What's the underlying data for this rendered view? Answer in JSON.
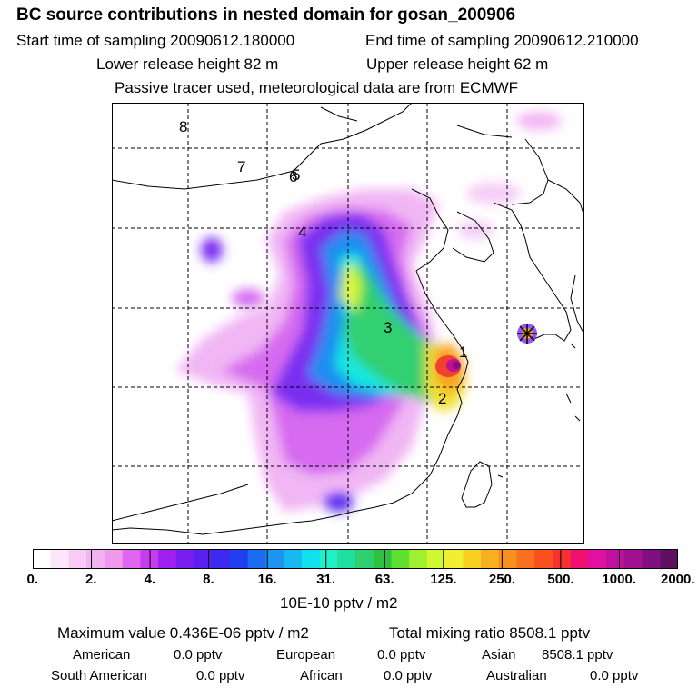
{
  "header": {
    "title": "BC  source contributions in nested domain for gosan_200906",
    "start_label": "Start time of sampling 20090612.180000",
    "end_label": "End time of sampling 20090612.210000",
    "lower_label": "Lower release height   82 m",
    "upper_label": "Upper release height   62 m",
    "note": "Passive tracer used, meteorological data are from ECMWF"
  },
  "map": {
    "region_labels": [
      "1",
      "2",
      "3",
      "4",
      "5",
      "6",
      "7",
      "8"
    ],
    "receptor_icon": "star-marker-icon"
  },
  "colorbar": {
    "ticks": [
      "0.",
      "2.",
      "4.",
      "8.",
      "16.",
      "31.",
      "63.",
      "125.",
      "250.",
      "500.",
      "1000.",
      "2000."
    ],
    "unit": "10E-10 pptv / m2",
    "colors": [
      "#ffffff",
      "#fbe6fb",
      "#f7ccf7",
      "#f2b3f2",
      "#ee99ee",
      "#e066f0",
      "#c83cf0",
      "#a020f0",
      "#7a1ef0",
      "#5a20f0",
      "#3c28f0",
      "#2040f0",
      "#1c6cf0",
      "#1c94f0",
      "#18b8f0",
      "#10e0f0",
      "#20f0c8",
      "#20e0a0",
      "#30d070",
      "#30c040",
      "#60e030",
      "#a0f030",
      "#d0f830",
      "#f0f030",
      "#f8d020",
      "#f8b020",
      "#f89020",
      "#f87020",
      "#f85020",
      "#f83030",
      "#f01070",
      "#e010a0",
      "#c010a0",
      "#a01090",
      "#801080",
      "#601060"
    ]
  },
  "footer": {
    "max_value_line": "Maximum value  0.436E-06 pptv / m2",
    "total_line": "Total mixing ratio     8508.1 pptv",
    "row1": [
      {
        "name": "American",
        "value": "0.0 pptv"
      },
      {
        "name": "European",
        "value": "0.0 pptv"
      },
      {
        "name": "Asian",
        "value": "8508.1 pptv"
      }
    ],
    "row2": [
      {
        "name": "South American",
        "value": "0.0 pptv"
      },
      {
        "name": "African",
        "value": "0.0 pptv"
      },
      {
        "name": "Australian",
        "value": "0.0 pptv"
      }
    ]
  }
}
